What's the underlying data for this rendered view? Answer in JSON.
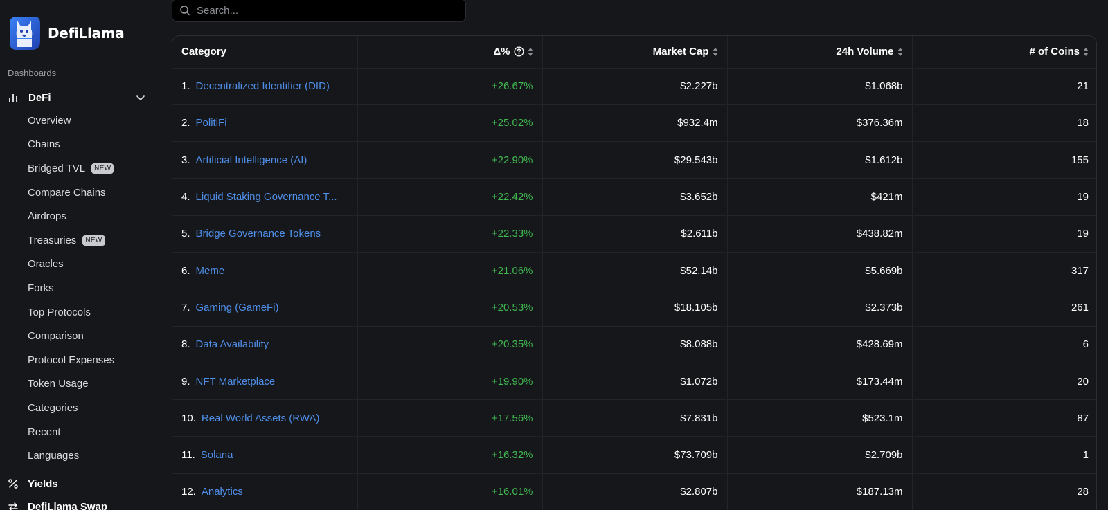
{
  "app": {
    "name": "DefiLlama"
  },
  "sidebar": {
    "section_label": "Dashboards",
    "group": {
      "label": "DeFi",
      "icon": "bar-chart-icon"
    },
    "items": [
      {
        "label": "Overview"
      },
      {
        "label": "Chains"
      },
      {
        "label": "Bridged TVL",
        "badge": "NEW"
      },
      {
        "label": "Compare Chains"
      },
      {
        "label": "Airdrops"
      },
      {
        "label": "Treasuries",
        "badge": "NEW"
      },
      {
        "label": "Oracles"
      },
      {
        "label": "Forks"
      },
      {
        "label": "Top Protocols"
      },
      {
        "label": "Comparison"
      },
      {
        "label": "Protocol Expenses"
      },
      {
        "label": "Token Usage"
      },
      {
        "label": "Categories"
      },
      {
        "label": "Recent"
      },
      {
        "label": "Languages"
      }
    ],
    "bottom": [
      {
        "label": "Yields",
        "icon": "percent-icon"
      },
      {
        "label": "DefiLlama Swap",
        "icon": "swap-icon"
      }
    ]
  },
  "search": {
    "placeholder": "Search..."
  },
  "table": {
    "headers": {
      "category": "Category",
      "change": "Δ%",
      "market_cap": "Market Cap",
      "volume": "24h Volume",
      "coins": "# of Coins"
    },
    "rows": [
      {
        "rank": "1.",
        "name": "Decentralized Identifier (DID)",
        "change": "+26.67%",
        "market_cap": "$2.227b",
        "volume": "$1.068b",
        "coins": "21"
      },
      {
        "rank": "2.",
        "name": "PolitiFi",
        "change": "+25.02%",
        "market_cap": "$932.4m",
        "volume": "$376.36m",
        "coins": "18"
      },
      {
        "rank": "3.",
        "name": "Artificial Intelligence (AI)",
        "change": "+22.90%",
        "market_cap": "$29.543b",
        "volume": "$1.612b",
        "coins": "155"
      },
      {
        "rank": "4.",
        "name": "Liquid Staking Governance T...",
        "change": "+22.42%",
        "market_cap": "$3.652b",
        "volume": "$421m",
        "coins": "19"
      },
      {
        "rank": "5.",
        "name": "Bridge Governance Tokens",
        "change": "+22.33%",
        "market_cap": "$2.611b",
        "volume": "$438.82m",
        "coins": "19"
      },
      {
        "rank": "6.",
        "name": "Meme",
        "change": "+21.06%",
        "market_cap": "$52.14b",
        "volume": "$5.669b",
        "coins": "317"
      },
      {
        "rank": "7.",
        "name": "Gaming (GameFi)",
        "change": "+20.53%",
        "market_cap": "$18.105b",
        "volume": "$2.373b",
        "coins": "261"
      },
      {
        "rank": "8.",
        "name": "Data Availability",
        "change": "+20.35%",
        "market_cap": "$8.088b",
        "volume": "$428.69m",
        "coins": "6"
      },
      {
        "rank": "9.",
        "name": "NFT Marketplace",
        "change": "+19.90%",
        "market_cap": "$1.072b",
        "volume": "$173.44m",
        "coins": "20"
      },
      {
        "rank": "10.",
        "name": "Real World Assets (RWA)",
        "change": "+17.56%",
        "market_cap": "$7.831b",
        "volume": "$523.1m",
        "coins": "87"
      },
      {
        "rank": "11.",
        "name": "Solana",
        "change": "+16.32%",
        "market_cap": "$73.709b",
        "volume": "$2.709b",
        "coins": "1"
      },
      {
        "rank": "12.",
        "name": "Analytics",
        "change": "+16.01%",
        "market_cap": "$2.807b",
        "volume": "$187.13m",
        "coins": "28"
      }
    ]
  },
  "colors": {
    "background": "#16171a",
    "link": "#4f8fea",
    "positive": "#3fb950",
    "brand": "#2f6bff"
  }
}
